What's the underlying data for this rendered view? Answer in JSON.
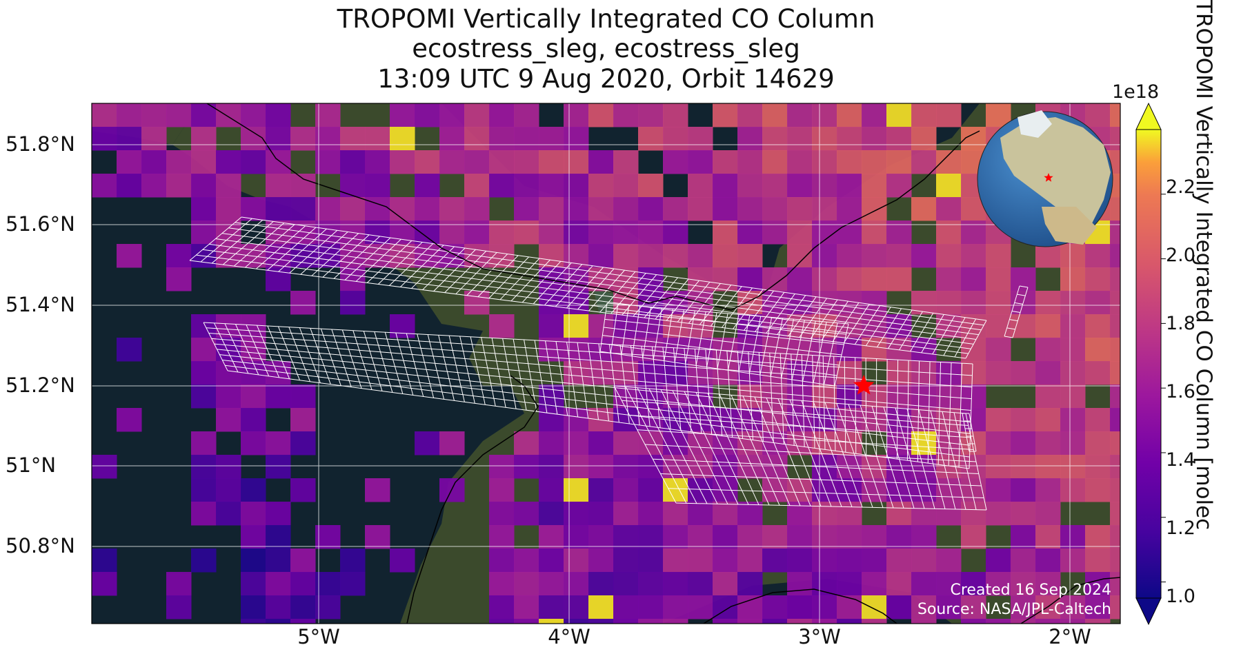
{
  "title": {
    "line1": "TROPOMI Vertically Integrated CO Column",
    "line2": "ecostress_sleg, ecostress_sleg",
    "line3": "13:09 UTC 9 Aug 2020, Orbit 14629"
  },
  "axes": {
    "lat_ticks": [
      "51.8°N",
      "51.6°N",
      "51.4°N",
      "51.2°N",
      "51°N",
      "50.8°N"
    ],
    "lon_ticks": [
      "5°W",
      "4°W",
      "3°W",
      "2°W"
    ],
    "lon_range": [
      -5.93,
      -1.8
    ],
    "lat_range": [
      50.62,
      51.91
    ]
  },
  "colorbar": {
    "label": "TROPOMI Vertically Integrated CO Column [molec",
    "exponent": "1e18",
    "ticks": [
      "2.2",
      "2.0",
      "1.8",
      "1.6",
      "1.4",
      "1.2",
      "1.0"
    ],
    "range": [
      0.95,
      2.4
    ],
    "colormap": "plasma",
    "extend": "both"
  },
  "marker": {
    "symbol": "star",
    "color": "#ff0000",
    "lon": -2.83,
    "lat": 51.21
  },
  "colors": {
    "ocean": "#11232f",
    "land": "#3b4a2c",
    "coast": "#000000",
    "grid": "#ffffff",
    "footprint": "#ffffff"
  },
  "inset": {
    "type": "globe",
    "marker_color": "#ff0000"
  },
  "credits": {
    "line1": "Created 16 Sep 2024",
    "line2": "Source: NASA/JPL-Caltech"
  }
}
